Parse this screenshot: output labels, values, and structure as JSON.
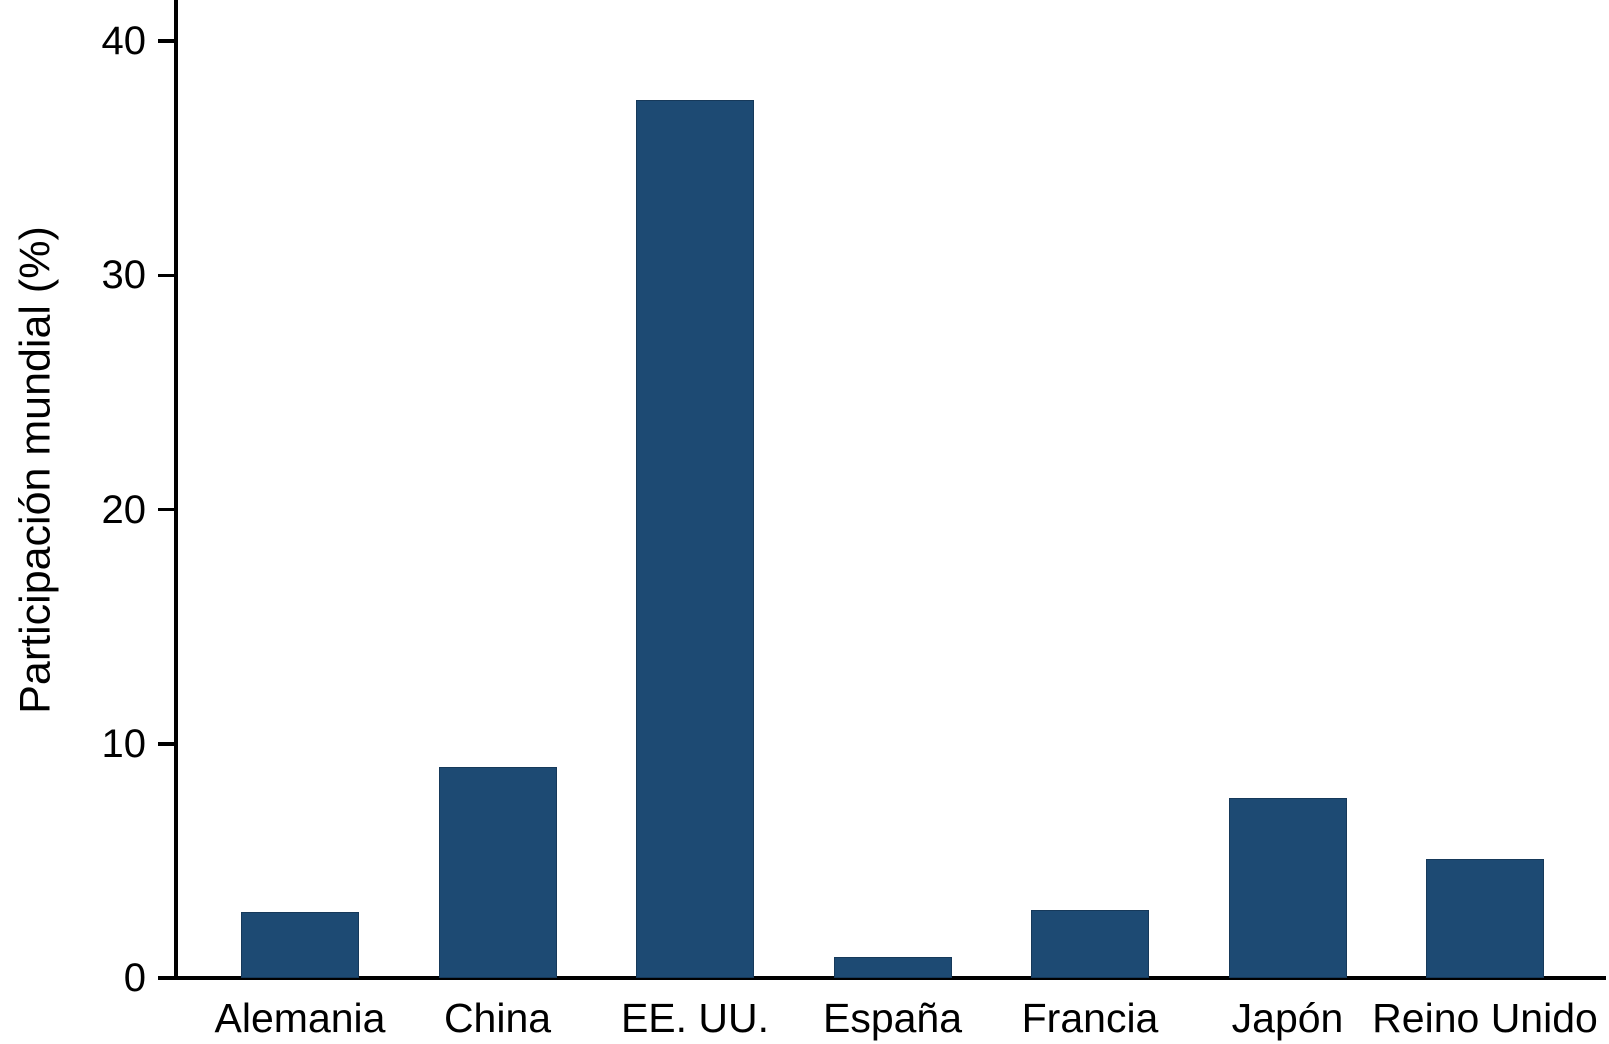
{
  "chart_data": {
    "type": "bar",
    "title": "",
    "xlabel": "",
    "ylabel": "Participación mundial (%)",
    "categories": [
      "Alemania",
      "China",
      "EE. UU.",
      "España",
      "Francia",
      "Japón",
      "Reino Unido"
    ],
    "values": [
      2.8,
      9.0,
      37.5,
      0.9,
      2.9,
      7.7,
      5.1
    ],
    "yticks": [
      0,
      10,
      20,
      30,
      40
    ],
    "ylim": [
      0,
      42
    ],
    "grid": false,
    "legend": null,
    "colors": {
      "bar_fill": "#1d4a73",
      "bar_edge": "#16395a",
      "axis": "#000000",
      "text": "#000000",
      "background": "#ffffff"
    }
  }
}
